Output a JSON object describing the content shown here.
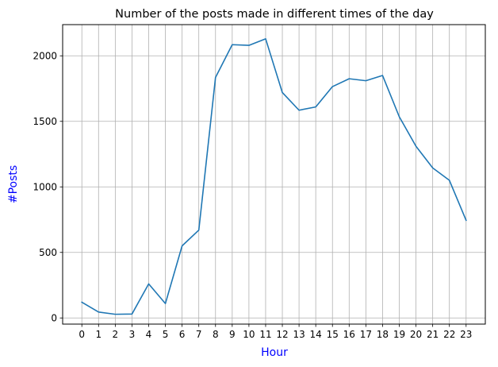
{
  "chart_data": {
    "type": "line",
    "title": "Number of the posts made in different times of the day",
    "xlabel": "Hour",
    "ylabel": "#Posts",
    "x": [
      0,
      1,
      2,
      3,
      4,
      5,
      6,
      7,
      8,
      9,
      10,
      11,
      12,
      13,
      14,
      15,
      16,
      17,
      18,
      19,
      20,
      21,
      22,
      23
    ],
    "series": [
      {
        "values": [
          120,
          45,
          28,
          30,
          260,
          110,
          550,
          670,
          1835,
          2085,
          2080,
          2130,
          1720,
          1585,
          1610,
          1765,
          1825,
          1810,
          1850,
          1535,
          1310,
          1145,
          1050,
          745
        ]
      }
    ],
    "xticks": [
      "0",
      "1",
      "2",
      "3",
      "4",
      "5",
      "6",
      "7",
      "8",
      "9",
      "10",
      "11",
      "12",
      "13",
      "14",
      "15",
      "16",
      "17",
      "18",
      "19",
      "20",
      "21",
      "22",
      "23"
    ],
    "yticks": [
      0,
      500,
      1000,
      1500,
      2000
    ],
    "ytick_labels": [
      "0",
      "500",
      "1000",
      "1500",
      "2000"
    ],
    "ylim": [
      -47,
      2238
    ],
    "xlim": [
      -1.15,
      24.15
    ],
    "grid": true,
    "colors": {
      "line": "#1f77b4",
      "grid": "#b0b0b0",
      "axis_label": "#0000ff",
      "frame": "#000000"
    }
  }
}
